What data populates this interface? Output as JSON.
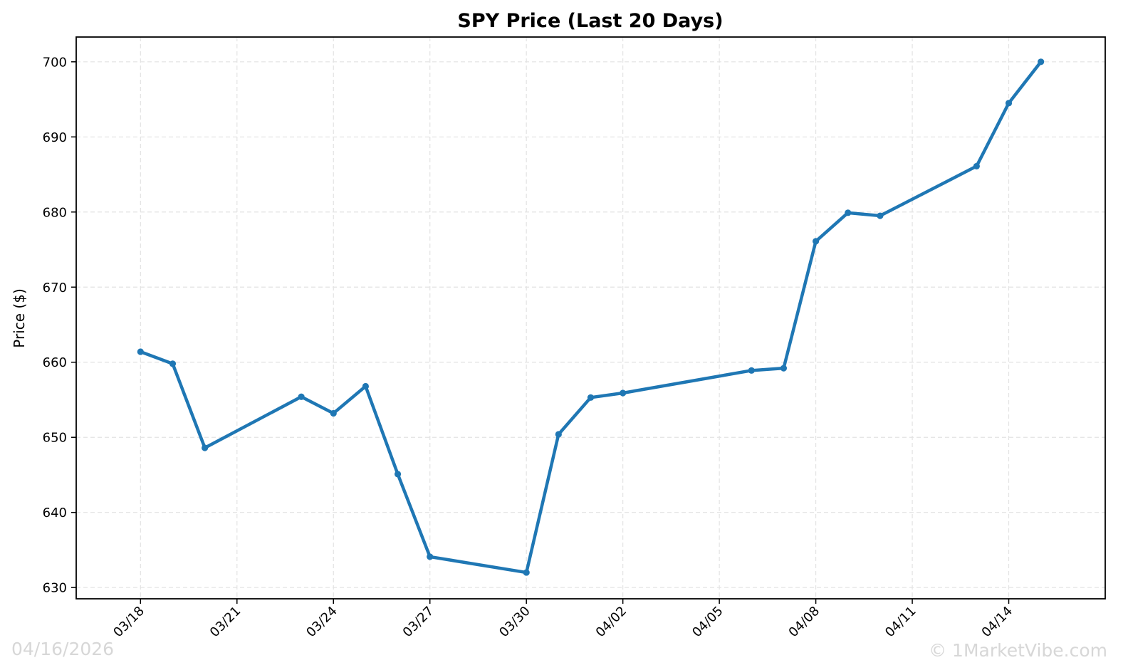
{
  "chart_data": {
    "type": "line",
    "title": "SPY Price (Last 20 Days)",
    "xlabel": "",
    "ylabel": "Price ($)",
    "grid": true,
    "x_tick_labels": [
      "03/18",
      "03/21",
      "03/24",
      "03/27",
      "03/30",
      "04/02",
      "04/05",
      "04/08",
      "04/11",
      "04/14"
    ],
    "y_ticks": [
      630,
      640,
      650,
      660,
      670,
      680,
      690,
      700
    ],
    "xlim": [
      "2026-03-16",
      "2026-04-17"
    ],
    "ylim": [
      628.5,
      703.3
    ],
    "series": [
      {
        "color": "#1f77b4",
        "points": [
          {
            "date": "2026-03-18",
            "value": 661.4
          },
          {
            "date": "2026-03-19",
            "value": 659.8
          },
          {
            "date": "2026-03-20",
            "value": 648.6
          },
          {
            "date": "2026-03-23",
            "value": 655.4
          },
          {
            "date": "2026-03-24",
            "value": 653.2
          },
          {
            "date": "2026-03-25",
            "value": 656.8
          },
          {
            "date": "2026-03-26",
            "value": 645.1
          },
          {
            "date": "2026-03-27",
            "value": 634.1
          },
          {
            "date": "2026-03-30",
            "value": 632.0
          },
          {
            "date": "2026-03-31",
            "value": 650.4
          },
          {
            "date": "2026-04-01",
            "value": 655.3
          },
          {
            "date": "2026-04-02",
            "value": 655.9
          },
          {
            "date": "2026-04-06",
            "value": 658.9
          },
          {
            "date": "2026-04-07",
            "value": 659.2
          },
          {
            "date": "2026-04-08",
            "value": 676.1
          },
          {
            "date": "2026-04-09",
            "value": 679.9
          },
          {
            "date": "2026-04-10",
            "value": 679.5
          },
          {
            "date": "2026-04-13",
            "value": 686.1
          },
          {
            "date": "2026-04-14",
            "value": 694.5
          },
          {
            "date": "2026-04-15",
            "value": 700.0
          }
        ]
      }
    ]
  },
  "watermark": {
    "date": "04/16/2026",
    "copyright": "© 1MarketVibe.com"
  }
}
